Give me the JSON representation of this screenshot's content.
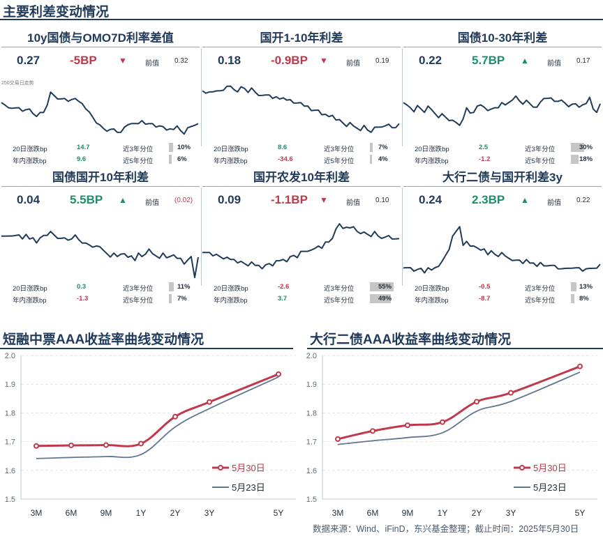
{
  "page": {
    "title": "主要利差变动情况",
    "source": "数据来源：Wind、iFinD，东兴基金整理；截止时间：2025年5月30日"
  },
  "panels": [
    {
      "title": "10y国债与OMO7D利率差值",
      "current": "0.27",
      "change": "-5BP",
      "direction": "down",
      "prev_label": "前值",
      "prev": "0.32",
      "note": "250交易日走势",
      "stat_20d_label": "20日涨跌bp",
      "stat_20d": "14.7",
      "stat_20d_color": "#1a8f70",
      "stat_ytd_label": "年内涨跌bp",
      "stat_ytd": "9.6",
      "stat_ytd_color": "#1a8f70",
      "pct3_label": "近3年分位",
      "pct3": "10%",
      "pct3_val": 0.1,
      "pct5_label": "近5年分位",
      "pct5": "6%",
      "pct5_val": 0.06
    },
    {
      "title": "国开1-10年利差",
      "current": "0.18",
      "change": "-0.9BP",
      "direction": "down",
      "prev_label": "前值",
      "prev": "0.19",
      "note": "",
      "stat_20d_label": "20日涨跌bp",
      "stat_20d": "8.6",
      "stat_20d_color": "#1a8f70",
      "stat_ytd_label": "年内涨跌bp",
      "stat_ytd": "-34.6",
      "stat_ytd_color": "#c0394b",
      "pct3_label": "近3年分位",
      "pct3": "7%",
      "pct3_val": 0.07,
      "pct5_label": "近5年分位",
      "pct5": "4%",
      "pct5_val": 0.04
    },
    {
      "title": "国债10-30年利差",
      "current": "0.22",
      "change": "5.7BP",
      "direction": "up",
      "prev_label": "前值",
      "prev": "0.17",
      "note": "",
      "stat_20d_label": "20日涨跌bp",
      "stat_20d": "2.5",
      "stat_20d_color": "#1a8f70",
      "stat_ytd_label": "年内涨跌bp",
      "stat_ytd": "-1.2",
      "stat_ytd_color": "#c0394b",
      "pct3_label": "近3年分位",
      "pct3": "30%",
      "pct3_val": 0.3,
      "pct5_label": "近5年分位",
      "pct5": "18%",
      "pct5_val": 0.18
    },
    {
      "title": "国债国开10年利差",
      "current": "0.04",
      "change": "5.5BP",
      "direction": "up",
      "prev_label": "前值",
      "prev": "(0.02)",
      "prev_color": "#c0394b",
      "note": "",
      "stat_20d_label": "20日涨跌bp",
      "stat_20d": "0.3",
      "stat_20d_color": "#1a8f70",
      "stat_ytd_label": "年内涨跌bp",
      "stat_ytd": "-1.3",
      "stat_ytd_color": "#c0394b",
      "pct3_label": "近3年分位",
      "pct3": "11%",
      "pct3_val": 0.11,
      "pct5_label": "近5年分位",
      "pct5": "7%",
      "pct5_val": 0.07
    },
    {
      "title": "国开农发10年利差",
      "current": "0.09",
      "change": "-1.1BP",
      "direction": "down",
      "prev_label": "前值",
      "prev": "0.10",
      "note": "",
      "stat_20d_label": "20日涨跌bp",
      "stat_20d": "-2.6",
      "stat_20d_color": "#c0394b",
      "stat_ytd_label": "年内涨跌bp",
      "stat_ytd": "3.7",
      "stat_ytd_color": "#1a8f70",
      "pct3_label": "近3年分位",
      "pct3": "55%",
      "pct3_val": 0.55,
      "pct5_label": "近5年分位",
      "pct5": "49%",
      "pct5_val": 0.49
    },
    {
      "title": "大行二债与国开利差3y",
      "current": "0.24",
      "change": "2.3BP",
      "direction": "up",
      "prev_label": "前值",
      "prev": "0.22",
      "note": "",
      "stat_20d_label": "20日涨跌bp",
      "stat_20d": "-0.5",
      "stat_20d_color": "#c0394b",
      "stat_ytd_label": "年内涨跌bp",
      "stat_ytd": "-8.7",
      "stat_ytd_color": "#c0394b",
      "pct3_label": "近3年分位",
      "pct3": "13%",
      "pct3_val": 0.13,
      "pct5_label": "近5年分位",
      "pct5": "8%",
      "pct5_val": 0.08
    }
  ],
  "colors": {
    "up": "#1a8f70",
    "down": "#c0394b",
    "line_dark": "#1f3a5a",
    "curve_new": "#c0394b",
    "curve_old": "#5f7791"
  },
  "chart_data": [
    {
      "type": "line",
      "title": "短融中票AAA收益率曲线变动情况",
      "categories": [
        "3M",
        "6M",
        "9M",
        "1Y",
        "2Y",
        "3Y",
        "5Y"
      ],
      "x_years": [
        0.25,
        0.5,
        0.75,
        1,
        2,
        3,
        5
      ],
      "ylim": [
        1.5,
        2.0
      ],
      "yticks": [
        "1.5",
        "1.6",
        "1.7",
        "1.8",
        "1.9",
        "2.0"
      ],
      "grid": true,
      "legend": "bottom-right",
      "series": [
        {
          "name": "5月30日",
          "values": [
            1.685,
            1.687,
            1.688,
            1.693,
            1.787,
            1.838,
            1.935
          ],
          "markers": true
        },
        {
          "name": "5月23日",
          "values": [
            1.641,
            1.645,
            1.648,
            1.655,
            1.751,
            1.815,
            1.925
          ],
          "markers": false
        }
      ]
    },
    {
      "type": "line",
      "title": "大行二债AAA收益率曲线变动情况",
      "categories": [
        "3M",
        "6M",
        "9M",
        "1Y",
        "2Y",
        "3Y",
        "5Y"
      ],
      "x_years": [
        0.25,
        0.5,
        0.75,
        1,
        2,
        3,
        5
      ],
      "ylim": [
        1.5,
        2.0
      ],
      "yticks": [
        "1.5",
        "1.6",
        "1.7",
        "1.8",
        "1.9",
        "2.0"
      ],
      "grid": true,
      "legend": "bottom-right",
      "series": [
        {
          "name": "5月30日",
          "values": [
            1.709,
            1.737,
            1.757,
            1.768,
            1.839,
            1.87,
            1.962
          ],
          "markers": true
        },
        {
          "name": "5月23日",
          "values": [
            1.69,
            1.703,
            1.714,
            1.731,
            1.806,
            1.84,
            1.942
          ],
          "markers": false
        }
      ]
    }
  ]
}
